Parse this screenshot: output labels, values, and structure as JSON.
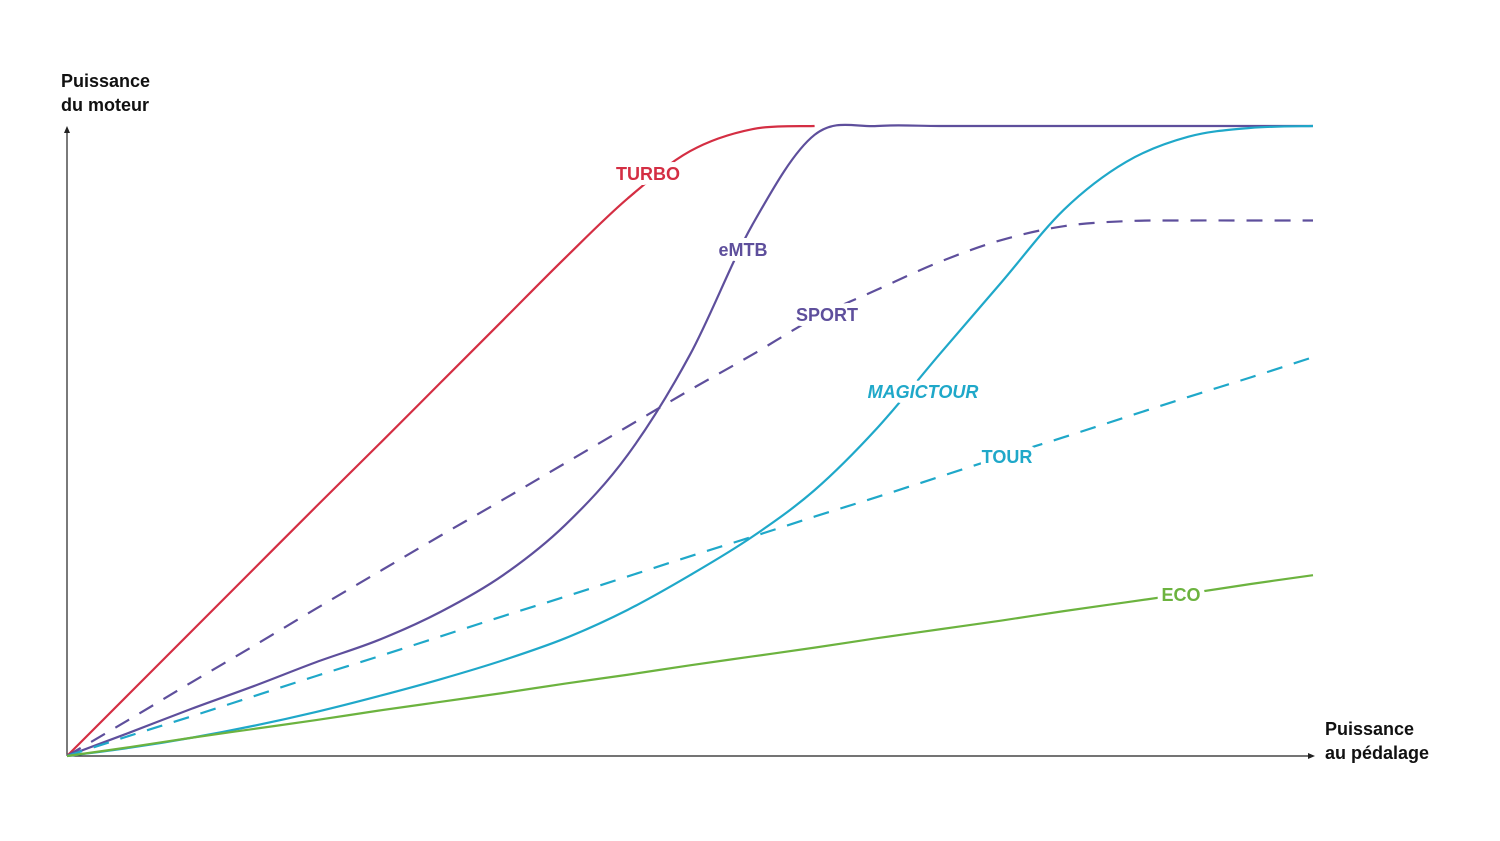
{
  "chart_data": {
    "type": "line",
    "y_label": [
      "Puissance",
      "du moteur"
    ],
    "x_label": [
      "Puissance",
      "au pédalage"
    ],
    "x": [
      0,
      5,
      10,
      15,
      20,
      25,
      30,
      35,
      40,
      45,
      50,
      55,
      60,
      65,
      70,
      75,
      80,
      85,
      90,
      95,
      100
    ],
    "xlim": [
      0,
      100
    ],
    "ylim": [
      0,
      100
    ],
    "series": [
      {
        "name": "TURBO",
        "color": "#d42e43",
        "dashed": false,
        "values": [
          0,
          9.9,
          19.8,
          29.7,
          39.6,
          49.4,
          59.3,
          69.2,
          79.1,
          88.5,
          96,
          99.5,
          100,
          null,
          null,
          null,
          null,
          null,
          null,
          null,
          null
        ]
      },
      {
        "name": "eMTB",
        "color": "#5e4f9c",
        "dashed": false,
        "values": [
          0,
          3.7,
          7.5,
          11.1,
          14.9,
          18.4,
          22.9,
          28.7,
          36.7,
          47.8,
          63.7,
          84.3,
          98.6,
          100,
          100,
          100,
          100,
          100,
          100,
          100,
          100
        ]
      },
      {
        "name": "SPORT",
        "color": "#5e4f9c",
        "dashed": true,
        "values": [
          0,
          5.8,
          11.7,
          17.5,
          23.4,
          29.2,
          35,
          40.7,
          46.5,
          52.3,
          58.1,
          63.7,
          69.5,
          74,
          78.4,
          81.9,
          84.1,
          84.9,
          85,
          85,
          85
        ]
      },
      {
        "name": "MAGICTOUR",
        "color": "#1fa8c9",
        "dashed": false,
        "values": [
          0,
          1.3,
          2.9,
          4.8,
          7,
          9.5,
          12.2,
          15.2,
          18.7,
          23.2,
          28.7,
          34.8,
          42.2,
          52,
          63.7,
          75.2,
          86.7,
          94.3,
          98.3,
          99.7,
          100
        ]
      },
      {
        "name": "TOUR",
        "color": "#1fa8c9",
        "dashed": true,
        "values": [
          0,
          3.2,
          6.3,
          9.5,
          12.7,
          15.8,
          19,
          22.2,
          25.3,
          28.5,
          31.7,
          34.8,
          38,
          41.1,
          44.3,
          47.5,
          50.6,
          53.8,
          57,
          60.1,
          63.3
        ]
      },
      {
        "name": "ECO",
        "color": "#6cb33f",
        "dashed": false,
        "values": [
          0,
          1.4,
          2.9,
          4.3,
          5.7,
          7.2,
          8.6,
          10,
          11.5,
          12.9,
          14.4,
          15.8,
          17.2,
          18.7,
          20.1,
          21.5,
          23,
          24.4,
          25.8,
          27.3,
          28.7
        ]
      }
    ]
  }
}
